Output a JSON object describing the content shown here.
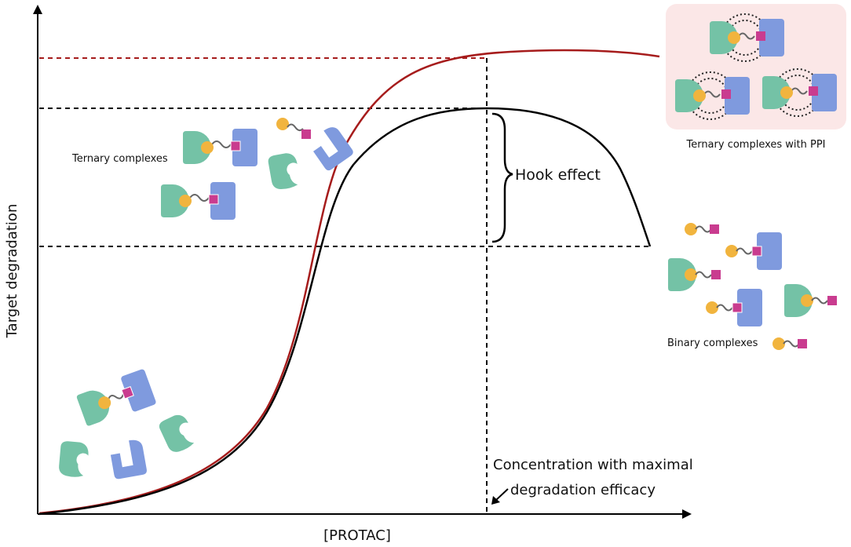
{
  "axes": {
    "x_label": "[PROTAC]",
    "y_label": "Target degradation"
  },
  "labels": {
    "ternary": "Ternary complexes",
    "ternary_ppi": "Ternary complexes with PPI",
    "hook": "Hook effect",
    "binary": "Binary complexes",
    "max_conc_line1": "Concentration with maximal",
    "max_conc_line2": "degradation efficacy"
  },
  "colors": {
    "e3_ligase": "#74c2a6",
    "target_protein": "#7f9ade",
    "ligand_e3": "#f1b43e",
    "ligand_target": "#c93c8f",
    "linker": "#666666",
    "curve_ppi": "#a61c1c",
    "curve_standard": "#000000",
    "ppi_panel_bg": "#fbe7e7"
  },
  "curves": [
    {
      "id": "ternary-with-ppi",
      "color": "#a61c1c",
      "shape": "sigmoid plateau"
    },
    {
      "id": "standard",
      "color": "#000000",
      "shape": "bell-shaped (hook effect)"
    }
  ]
}
